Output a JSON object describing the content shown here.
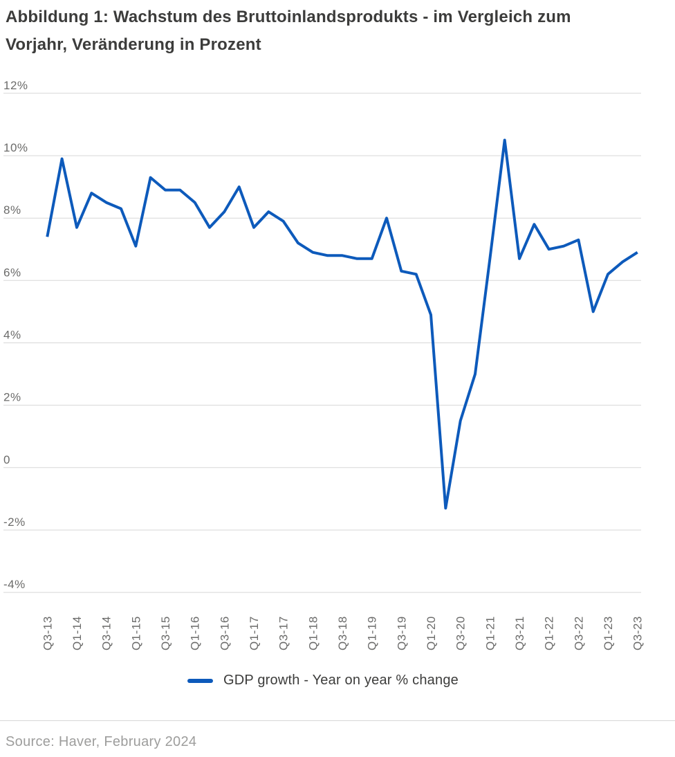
{
  "figure": {
    "title_line1": "Abbildung 1: Wachstum des Bruttoinlandsprodukts - im Vergleich zum",
    "title_line2": "Vorjahr, Veränderung in Prozent",
    "legend_label": "GDP growth - Year on year % change",
    "source": "Source: Haver, February 2024"
  },
  "colors": {
    "line": "#0D5ABB",
    "grid": "#D7D7D7",
    "title_text": "#3C3C3B",
    "legend_text": "#3C3C3B",
    "axis_text": "#6B6B6A",
    "source_text": "#9D9D9C"
  },
  "chart_data": {
    "type": "line",
    "title": "Abbildung 1: Wachstum des Bruttoinlandsprodukts - im Vergleich zum Vorjahr, Veränderung in Prozent",
    "xlabel": "",
    "ylabel": "",
    "ylim": [
      -4,
      12
    ],
    "grid": true,
    "legend_position": "bottom",
    "x": [
      "Q3-13",
      "Q4-13",
      "Q1-14",
      "Q2-14",
      "Q3-14",
      "Q4-14",
      "Q1-15",
      "Q2-15",
      "Q3-15",
      "Q4-15",
      "Q1-16",
      "Q2-16",
      "Q3-16",
      "Q4-16",
      "Q1-17",
      "Q2-17",
      "Q3-17",
      "Q4-17",
      "Q1-18",
      "Q2-18",
      "Q3-18",
      "Q4-18",
      "Q1-19",
      "Q2-19",
      "Q3-19",
      "Q4-19",
      "Q1-20",
      "Q2-20",
      "Q3-20",
      "Q4-20",
      "Q1-21",
      "Q2-21",
      "Q3-21",
      "Q4-21",
      "Q1-22",
      "Q2-22",
      "Q3-22",
      "Q4-22",
      "Q1-23",
      "Q2-23",
      "Q3-23"
    ],
    "x_tick_labels": [
      "Q3-13",
      "Q1-14",
      "Q3-14",
      "Q1-15",
      "Q3-15",
      "Q1-16",
      "Q3-16",
      "Q1-17",
      "Q3-17",
      "Q1-18",
      "Q3-18",
      "Q1-19",
      "Q3-19",
      "Q1-20",
      "Q3-20",
      "Q1-21",
      "Q3-21",
      "Q1-22",
      "Q3-22",
      "Q1-23",
      "Q3-23"
    ],
    "y_ticks": {
      "values": [
        12,
        10,
        8,
        6,
        4,
        2,
        0,
        -2,
        -4
      ],
      "labels": [
        "12%",
        "10%",
        "8%",
        "6%",
        "4%",
        "2%",
        "0",
        "-2%",
        "-4%"
      ]
    },
    "series": [
      {
        "name": "GDP growth - Year on year % change",
        "color": "#0D5ABB",
        "values": [
          7.4,
          9.9,
          7.7,
          8.8,
          8.5,
          8.3,
          7.1,
          9.3,
          8.9,
          8.9,
          8.5,
          7.7,
          8.2,
          9.0,
          7.7,
          8.2,
          7.9,
          7.2,
          6.9,
          6.8,
          6.8,
          6.7,
          6.7,
          8.0,
          6.3,
          6.2,
          4.9,
          -1.3,
          1.5,
          3.0,
          6.7,
          10.5,
          6.7,
          7.8,
          7.0,
          7.1,
          7.3,
          5.0,
          6.2,
          6.6,
          6.9
        ]
      }
    ]
  }
}
